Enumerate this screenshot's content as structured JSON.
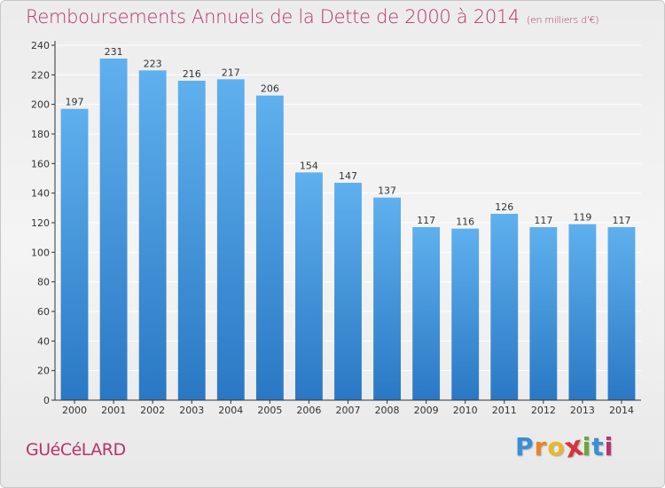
{
  "header": {
    "title": "Remboursements Annuels de la Dette de 2000 à 2014",
    "subtitle": "(en milliers d'€)"
  },
  "footer": {
    "commune": "GUéCéLARD",
    "logo_letters": [
      "P",
      "r",
      "o",
      "x",
      "i",
      "t",
      "i"
    ],
    "logo_colors": [
      "#3a8fd6",
      "#e8842a",
      "#e8b82a",
      "#d6343a",
      "#6aa83a",
      "#3a8fd6",
      "#b8336a"
    ]
  },
  "colors": {
    "bar_top": "#5fb0ee",
    "bar_bottom": "#2a78c4",
    "axis": "#333333",
    "grid": "#ffffff"
  },
  "chart_data": {
    "type": "bar",
    "title": "Remboursements Annuels de la Dette de 2000 à 2014",
    "subtitle": "(en milliers d'€)",
    "categories": [
      "2000",
      "2001",
      "2002",
      "2003",
      "2004",
      "2005",
      "2006",
      "2007",
      "2008",
      "2009",
      "2010",
      "2011",
      "2012",
      "2013",
      "2014"
    ],
    "values": [
      197,
      231,
      223,
      216,
      217,
      206,
      154,
      147,
      137,
      117,
      116,
      126,
      117,
      119,
      117
    ],
    "ylim": [
      0,
      240
    ],
    "yticks": [
      0,
      20,
      40,
      60,
      80,
      100,
      120,
      140,
      160,
      180,
      200,
      220,
      240
    ],
    "xlabel": "",
    "ylabel": "",
    "grid": true,
    "legend": "none"
  }
}
